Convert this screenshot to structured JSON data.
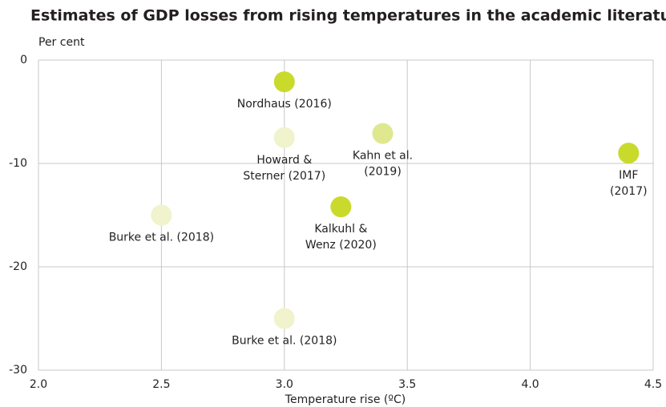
{
  "chart_data": {
    "type": "scatter",
    "title": "Estimates of GDP losses from rising temperatures in the academic literature",
    "y_label": "Per cent",
    "x_label": "Temperature rise (ºC)",
    "xlim": [
      2,
      4.5
    ],
    "ylim": [
      -30,
      0
    ],
    "xticks": [
      {
        "value": 2,
        "label": "2.0"
      },
      2.5,
      {
        "value": 3,
        "label": "3.0"
      },
      3.5,
      {
        "value": 4,
        "label": "4.0"
      },
      4.5
    ],
    "yticks": [
      0,
      -10,
      -20,
      -30
    ],
    "grid": true,
    "series": [
      {
        "x": [
          3.0,
          3.0,
          3.4,
          4.4,
          3.23,
          2.5,
          3.0
        ],
        "values": [
          -2.1,
          -7.5,
          -7.1,
          -9.0,
          -14.2,
          -15.0,
          -25.0
        ],
        "colors": [
          "#c9da2c",
          "#f0f3cc",
          "#dfe88f",
          "#c9da2c",
          "#c9da2c",
          "#f0f3cc",
          "#f0f3cc"
        ],
        "labels": [
          [
            "Nordhaus (2016)"
          ],
          [
            "Howard &",
            "Sterner (2017)"
          ],
          [
            "Kahn et al.",
            "(2019)"
          ],
          [
            "IMF",
            "(2017)"
          ],
          [
            "Kalkuhl &",
            "Wenz (2020)"
          ],
          [
            "Burke et al. (2018)"
          ],
          [
            "Burke et al. (2018)"
          ]
        ]
      }
    ]
  }
}
